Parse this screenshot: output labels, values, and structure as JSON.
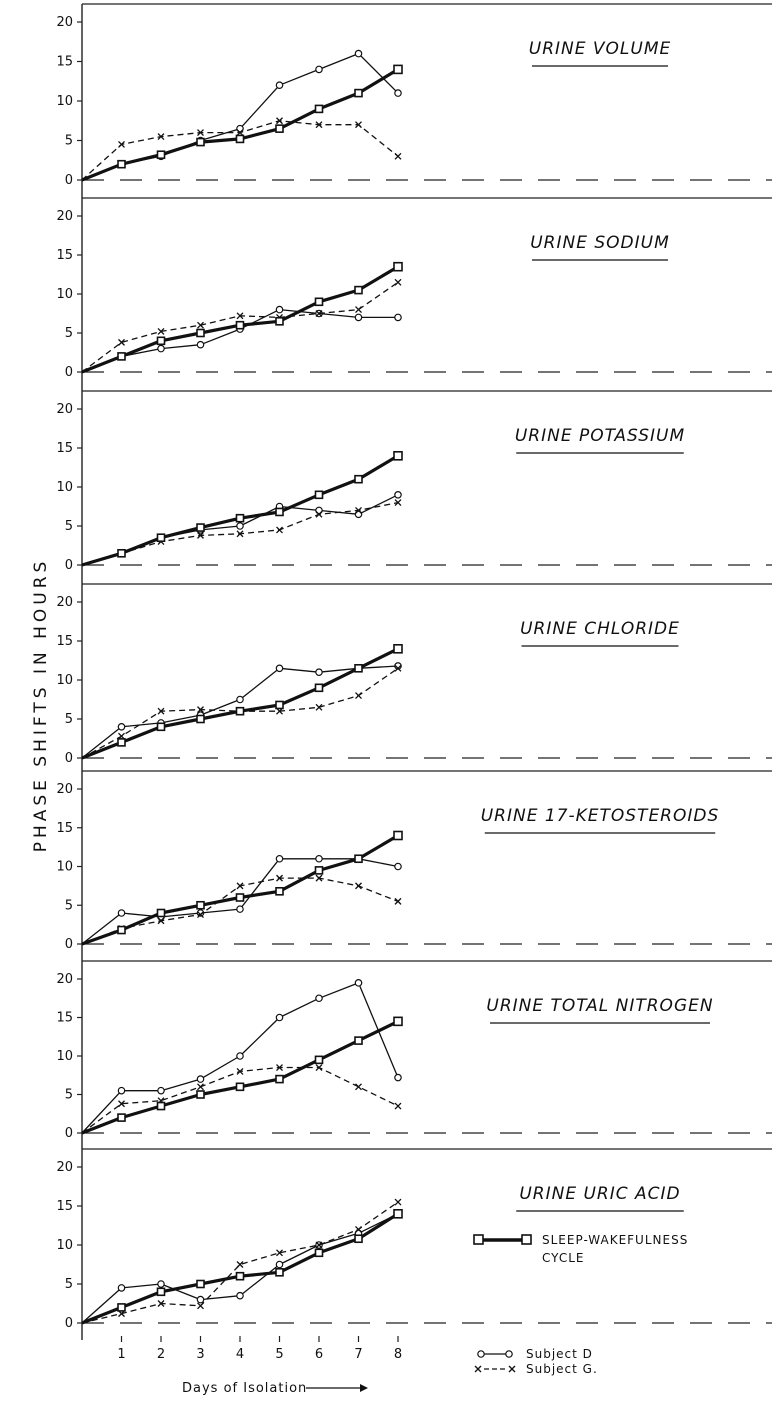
{
  "chart_data": {
    "type": "line",
    "ylabel": "PHASE SHIFTS IN HOURS",
    "xlabel": "Days of Isolation",
    "xticks": [
      1,
      2,
      3,
      4,
      5,
      6,
      7,
      8
    ],
    "xlim": [
      0,
      8
    ],
    "ylim": [
      0,
      20
    ],
    "yticks": [
      0,
      5,
      10,
      15,
      20
    ],
    "grid": false,
    "legend": {
      "sleep": "SLEEP-WAKEFULNESS CYCLE",
      "subject_d": "Subject D",
      "subject_g": "Subject G."
    },
    "panels": [
      {
        "title": "URINE VOLUME",
        "series": [
          {
            "name": "Subject D",
            "x": [
              0,
              1,
              2,
              3,
              4,
              5,
              6,
              7,
              8
            ],
            "values": [
              0,
              2,
              3,
              5,
              6.5,
              12,
              14,
              16,
              11
            ]
          },
          {
            "name": "Subject G.",
            "x": [
              0,
              1,
              2,
              3,
              4,
              5,
              6,
              7,
              8
            ],
            "values": [
              0,
              4.5,
              5.5,
              6,
              6,
              7.5,
              7,
              7,
              3
            ]
          },
          {
            "name": "SLEEP-WAKEFULNESS CYCLE",
            "x": [
              0,
              1,
              2,
              3,
              4,
              5,
              6,
              7,
              8
            ],
            "values": [
              0,
              2,
              3.2,
              4.8,
              5.2,
              6.5,
              9,
              11,
              14
            ]
          }
        ]
      },
      {
        "title": "URINE SODIUM",
        "series": [
          {
            "name": "Subject D",
            "x": [
              0,
              1,
              2,
              3,
              4,
              5,
              6,
              7,
              8
            ],
            "values": [
              0,
              2,
              3,
              3.5,
              5.5,
              8,
              7.5,
              7,
              7
            ]
          },
          {
            "name": "Subject G.",
            "x": [
              0,
              1,
              2,
              3,
              4,
              5,
              6,
              7,
              8
            ],
            "values": [
              0,
              3.8,
              5.2,
              6,
              7.2,
              7,
              7.5,
              8,
              11.5
            ]
          },
          {
            "name": "SLEEP-WAKEFULNESS CYCLE",
            "x": [
              0,
              1,
              2,
              3,
              4,
              5,
              6,
              7,
              8
            ],
            "values": [
              0,
              2,
              4,
              5,
              6,
              6.5,
              9,
              10.5,
              13.5
            ]
          }
        ]
      },
      {
        "title": "URINE POTASSIUM",
        "series": [
          {
            "name": "Subject D",
            "x": [
              0,
              1,
              2,
              3,
              4,
              5,
              6,
              7,
              8
            ],
            "values": [
              0,
              1.5,
              3.5,
              4.5,
              5,
              7.5,
              7,
              6.5,
              9
            ]
          },
          {
            "name": "Subject G.",
            "x": [
              0,
              1,
              2,
              3,
              4,
              5,
              6,
              7,
              8
            ],
            "values": [
              0,
              1.5,
              3,
              3.8,
              4,
              4.5,
              6.5,
              7,
              8
            ]
          },
          {
            "name": "SLEEP-WAKEFULNESS CYCLE",
            "x": [
              0,
              1,
              2,
              3,
              4,
              5,
              6,
              7,
              8
            ],
            "values": [
              0,
              1.5,
              3.5,
              4.8,
              6,
              6.8,
              9,
              11,
              14
            ]
          }
        ]
      },
      {
        "title": "URINE CHLORIDE",
        "series": [
          {
            "name": "Subject D",
            "x": [
              0,
              1,
              2,
              3,
              4,
              5,
              6,
              7,
              8
            ],
            "values": [
              0,
              4,
              4.5,
              5.5,
              7.5,
              11.5,
              11,
              11.5,
              11.8
            ]
          },
          {
            "name": "Subject G.",
            "x": [
              0,
              1,
              2,
              3,
              4,
              5,
              6,
              7,
              8
            ],
            "values": [
              0,
              2.8,
              6,
              6.2,
              6,
              6,
              6.5,
              8,
              11.5
            ]
          },
          {
            "name": "SLEEP-WAKEFULNESS CYCLE",
            "x": [
              0,
              1,
              2,
              3,
              4,
              5,
              6,
              7,
              8
            ],
            "values": [
              0,
              2,
              4,
              5,
              6,
              6.8,
              9,
              11.5,
              14
            ]
          }
        ]
      },
      {
        "title": "URINE 17-KETOSTEROIDS",
        "series": [
          {
            "name": "Subject D",
            "x": [
              0,
              1,
              2,
              3,
              4,
              5,
              6,
              7,
              8
            ],
            "values": [
              0,
              4,
              3.5,
              4,
              4.5,
              11,
              11,
              11,
              10
            ]
          },
          {
            "name": "Subject G.",
            "x": [
              0,
              1,
              2,
              3,
              4,
              5,
              6,
              7,
              8
            ],
            "values": [
              0,
              2,
              3,
              3.8,
              7.5,
              8.5,
              8.5,
              7.5,
              5.5
            ]
          },
          {
            "name": "SLEEP-WAKEFULNESS CYCLE",
            "x": [
              0,
              1,
              2,
              3,
              4,
              5,
              6,
              7,
              8
            ],
            "values": [
              0,
              1.8,
              4,
              5,
              6,
              6.8,
              9.5,
              11,
              14
            ]
          }
        ]
      },
      {
        "title": "URINE TOTAL NITROGEN",
        "series": [
          {
            "name": "Subject D",
            "x": [
              0,
              1,
              2,
              3,
              4,
              5,
              6,
              7,
              8
            ],
            "values": [
              0,
              5.5,
              5.5,
              7,
              10,
              15,
              17.5,
              19.5,
              7.2
            ]
          },
          {
            "name": "Subject G.",
            "x": [
              0,
              1,
              2,
              3,
              4,
              5,
              6,
              7,
              8
            ],
            "values": [
              0,
              3.8,
              4.2,
              6,
              8,
              8.5,
              8.5,
              6,
              3.5
            ]
          },
          {
            "name": "SLEEP-WAKEFULNESS CYCLE",
            "x": [
              0,
              1,
              2,
              3,
              4,
              5,
              6,
              7,
              8
            ],
            "values": [
              0,
              2,
              3.5,
              5,
              6,
              7,
              9.5,
              12,
              14.5
            ]
          }
        ]
      },
      {
        "title": "URINE URIC ACID",
        "series": [
          {
            "name": "Subject D",
            "x": [
              0,
              1,
              2,
              3,
              4,
              5,
              6,
              7,
              8
            ],
            "values": [
              0,
              4.5,
              5,
              3,
              3.5,
              7.5,
              10,
              11.5,
              14
            ]
          },
          {
            "name": "Subject G.",
            "x": [
              0,
              1,
              2,
              3,
              4,
              5,
              6,
              7,
              8
            ],
            "values": [
              0,
              1.2,
              2.5,
              2.2,
              7.5,
              9,
              10,
              12,
              15.5
            ]
          },
          {
            "name": "SLEEP-WAKEFULNESS CYCLE",
            "x": [
              0,
              1,
              2,
              3,
              4,
              5,
              6,
              7,
              8
            ],
            "values": [
              0,
              2,
              4,
              5,
              6,
              6.5,
              9,
              10.8,
              14
            ]
          }
        ]
      }
    ]
  }
}
